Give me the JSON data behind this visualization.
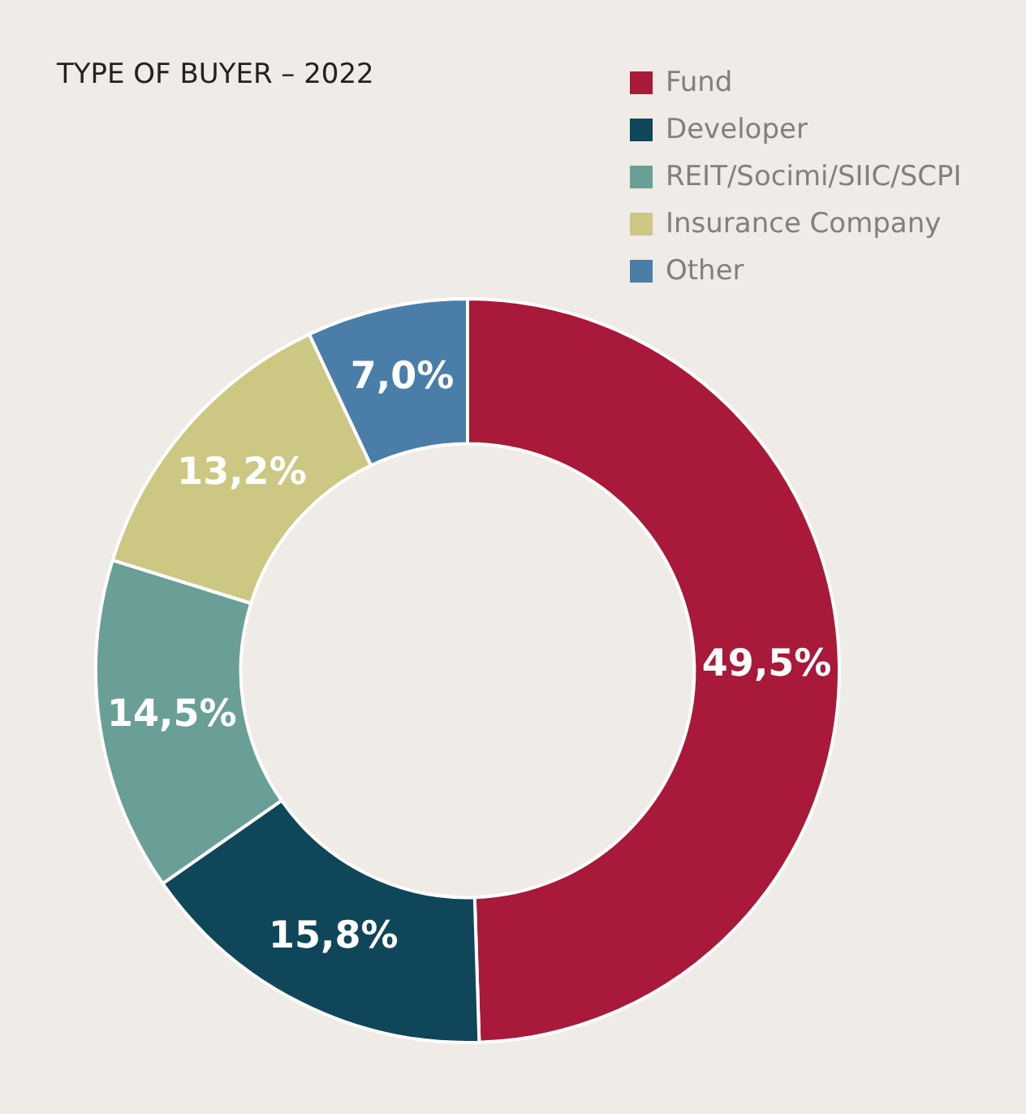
{
  "chart_data": {
    "type": "donut",
    "title": "TYPE OF BUYER – 2022",
    "categories": [
      "Fund",
      "Developer",
      "REIT/Socimi/SIIC/SCPI",
      "Insurance Company",
      "Other"
    ],
    "values": [
      49.5,
      15.8,
      14.5,
      13.2,
      7.0
    ],
    "colors": [
      "#a8193a",
      "#0f465a",
      "#6a9f98",
      "#cdc784",
      "#4a7ea8"
    ],
    "value_labels": [
      "49,5%",
      "15,8%",
      "14,5%",
      "13,2%",
      "7,0%"
    ],
    "legend": "top right"
  }
}
